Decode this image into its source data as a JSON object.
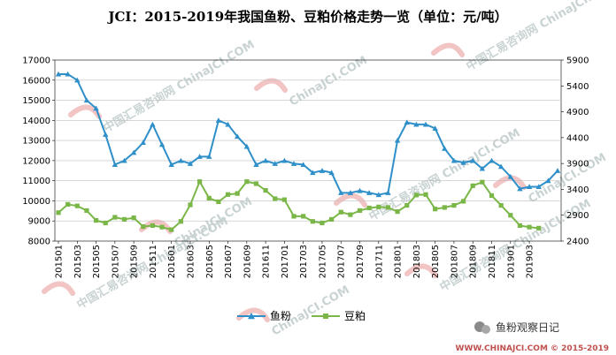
{
  "chart_data": {
    "type": "line",
    "title": "JCI：2015-2019年我国鱼粉、豆粕价格走势一览（单位：元/吨）",
    "left_axis": {
      "ylim": [
        8000,
        17000
      ],
      "ticks": [
        8000,
        9000,
        10000,
        11000,
        12000,
        13000,
        14000,
        15000,
        16000,
        17000
      ]
    },
    "right_axis": {
      "ylim": [
        2400,
        5900
      ],
      "ticks": [
        2400,
        2900,
        3400,
        3900,
        4400,
        4900,
        5400,
        5900
      ]
    },
    "x_tick_labels": [
      "201501",
      "201503",
      "201505",
      "201507",
      "201509",
      "201511",
      "201601",
      "201603",
      "201605",
      "201607",
      "201609",
      "201611",
      "201701",
      "201703",
      "201705",
      "201707",
      "201709",
      "201711",
      "201801",
      "201803",
      "201805",
      "201807",
      "201809",
      "201811",
      "201901",
      "201903"
    ],
    "grid": true,
    "legend_position": "bottom",
    "series": [
      {
        "name": "鱼粉",
        "axis": "left",
        "color": "#2e8fc9",
        "marker": "triangle",
        "values": [
          16300,
          16300,
          16000,
          15000,
          14600,
          13300,
          11800,
          12000,
          12400,
          12900,
          13800,
          12800,
          11800,
          12000,
          11850,
          12200,
          12200,
          14000,
          13800,
          13200,
          12700,
          11800,
          12000,
          11850,
          12000,
          11850,
          11800,
          11400,
          11500,
          11400,
          10400,
          10400,
          10500,
          10400,
          10300,
          10400,
          13000,
          13900,
          13800,
          13800,
          13600,
          12600,
          12000,
          11900,
          12000,
          11600,
          12000,
          11700,
          11200,
          10600,
          10700,
          10700,
          11000,
          11500
        ]
      },
      {
        "name": "豆粕",
        "axis": "right",
        "color": "#7ab648",
        "marker": "square",
        "values": [
          2950,
          3110,
          3080,
          2990,
          2800,
          2750,
          2860,
          2820,
          2850,
          2680,
          2700,
          2670,
          2620,
          2780,
          3100,
          3550,
          3230,
          3160,
          3300,
          3320,
          3550,
          3510,
          3380,
          3220,
          3200,
          2880,
          2880,
          2780,
          2750,
          2820,
          2960,
          2910,
          2990,
          3040,
          3060,
          3050,
          2970,
          3090,
          3290,
          3300,
          3020,
          3050,
          3090,
          3170,
          3470,
          3540,
          3280,
          3090,
          2900,
          2700,
          2670,
          2650
        ]
      }
    ]
  },
  "watermark": {
    "text": "中国汇易咨询网",
    "domain": "ChinaJCI.COM"
  },
  "credit": "WWW.CHINAJCI.COM © 2015-2019",
  "wechat_label": "鱼粉观察日记"
}
